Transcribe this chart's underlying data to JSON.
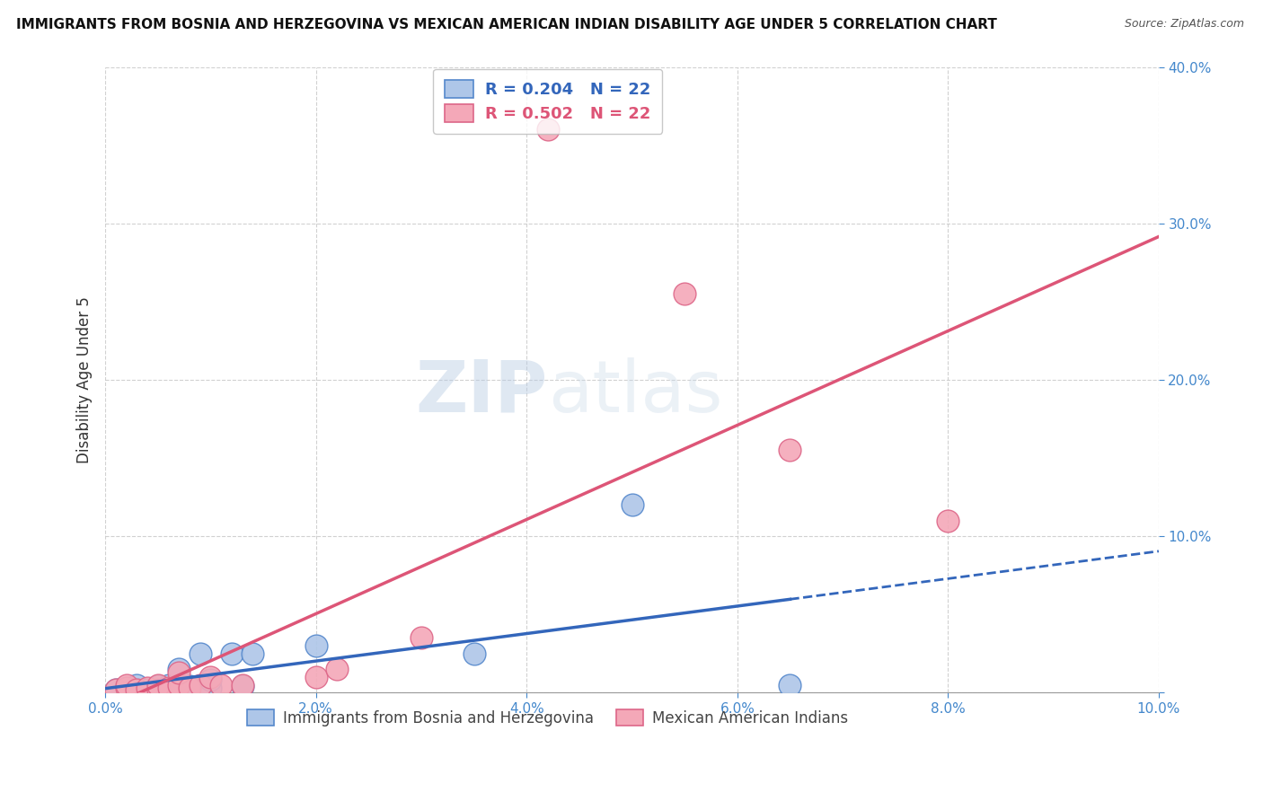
{
  "title": "IMMIGRANTS FROM BOSNIA AND HERZEGOVINA VS MEXICAN AMERICAN INDIAN DISABILITY AGE UNDER 5 CORRELATION CHART",
  "source": "Source: ZipAtlas.com",
  "ylabel": "Disability Age Under 5",
  "xlabel_legend1": "Immigrants from Bosnia and Herzegovina",
  "xlabel_legend2": "Mexican American Indians",
  "R1": 0.204,
  "N1": 22,
  "R2": 0.502,
  "N2": 22,
  "xlim": [
    0.0,
    0.1
  ],
  "ylim": [
    0.0,
    0.4
  ],
  "xticks": [
    0.0,
    0.02,
    0.04,
    0.06,
    0.08,
    0.1
  ],
  "yticks": [
    0.0,
    0.1,
    0.2,
    0.3,
    0.4
  ],
  "color_blue": "#aec6e8",
  "color_pink": "#f4a8b8",
  "color_blue_edge": "#5588cc",
  "color_pink_edge": "#dd6688",
  "color_blue_line": "#3366bb",
  "color_pink_line": "#dd5577",
  "watermark_zip": "ZIP",
  "watermark_atlas": "atlas",
  "bosnia_x": [
    0.001,
    0.002,
    0.003,
    0.003,
    0.004,
    0.005,
    0.005,
    0.006,
    0.006,
    0.007,
    0.007,
    0.008,
    0.009,
    0.01,
    0.01,
    0.012,
    0.013,
    0.014,
    0.02,
    0.035,
    0.05,
    0.065
  ],
  "bosnia_y": [
    0.002,
    0.003,
    0.002,
    0.005,
    0.002,
    0.002,
    0.004,
    0.002,
    0.005,
    0.002,
    0.015,
    0.004,
    0.025,
    0.003,
    0.008,
    0.025,
    0.004,
    0.025,
    0.03,
    0.025,
    0.12,
    0.005
  ],
  "mexican_x": [
    0.001,
    0.002,
    0.002,
    0.003,
    0.004,
    0.005,
    0.005,
    0.006,
    0.007,
    0.007,
    0.008,
    0.009,
    0.01,
    0.011,
    0.013,
    0.02,
    0.022,
    0.03,
    0.042,
    0.055,
    0.065,
    0.08
  ],
  "mexican_y": [
    0.002,
    0.003,
    0.005,
    0.002,
    0.003,
    0.002,
    0.005,
    0.003,
    0.005,
    0.013,
    0.003,
    0.005,
    0.01,
    0.005,
    0.005,
    0.01,
    0.015,
    0.035,
    0.36,
    0.255,
    0.155,
    0.11
  ]
}
